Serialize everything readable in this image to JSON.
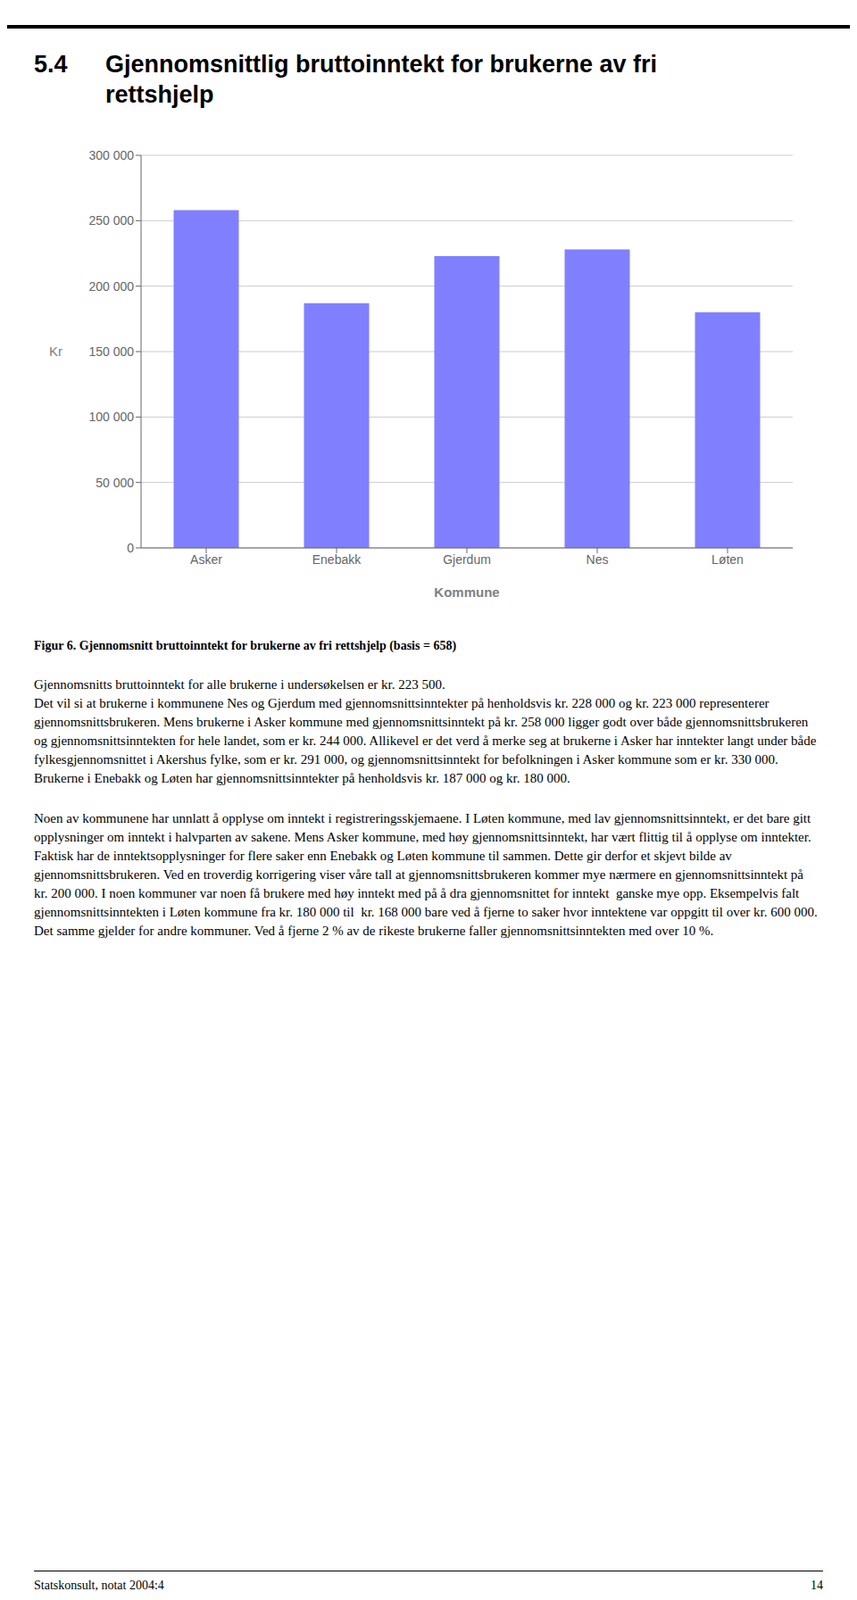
{
  "section_number": "5.4",
  "figcaption": "Figur 6. Gjennomsnitt bruttoinntekt for brukerne av fri rettshjelp (basis = 658)",
  "body_text": "Gjennomsnitts bruttoinntekt for alle brukerne i undersøkelsen er kr. 223 500.\nDet vil si at brukerne i kommunene Nes og Gjerdum med gjennomsnittsinntekter på henholdsvis kr. 228 000 og kr. 223 000 representerer gjennomsnittsbrukeren. Mens brukerne i Asker kommune med gjennomsnittsinntekt på kr. 258 000 ligger godt over både gjennomsnittsbrukeren og gjennomsnittsinntekten for hele landet, som er kr. 244 000. Allikevel er det verd å merke seg at brukerne i Asker har inntekter langt under både fylkesgjennomsnittet i Akershus fylke, som er kr. 291 000, og gjennomsnittsinntekt for befolkningen i Asker kommune som er kr. 330 000. Brukerne i Enebakk og Løten har gjennomsnittsinntekter på henholdsvis kr. 187 000 og kr. 180 000.",
  "body_text2": "Noen av kommunene har unnlatt å opplyse om inntekt i registreringsskjemaene. I Løten kommune, med lav gjennomsnittsinntekt, er det bare gitt opplysninger om inntekt i halvparten av sakene. Mens Asker kommune, med høy gjennomsnittsinntekt, har vært flittig til å opplyse om inntekter. Faktisk har de inntektsopplysninger for flere saker enn Enebakk og Løten kommune til sammen. Dette gir derfor et skjevt bilde av gjennomsnittsbrukeren. Ved en troverdig korrigering viser våre tall at gjennomsnittsbrukeren kommer mye nærmere en gjennomsnittsinntekt på  kr. 200 000. I noen kommuner var noen få brukere med høy inntekt med på å dra gjennomsnittet for inntekt  ganske mye opp. Eksempelvis falt gjennomsnittsinntekten i Løten kommune fra kr. 180 000 til  kr. 168 000 bare ved å fjerne to saker hvor inntektene var oppgitt til over kr. 600 000. Det samme gjelder for andre kommuner. Ved å fjerne 2 % av de rikeste brukerne faller gjennomsnittsinntekten med over 10 %.",
  "footer_left": "Statskonsult, notat 2004:4",
  "footer_right": "14",
  "chart_data": {
    "type": "bar",
    "title": "Gjennomsnittlig bruttoinntekt for brukerne av fri\nrettshjelp",
    "categories": [
      "Asker",
      "Enebakk",
      "Gjerdum",
      "Nes",
      "Løten"
    ],
    "values": [
      258000,
      187000,
      223000,
      228000,
      180000
    ],
    "color": "#8080ff",
    "xlabel": "Kommune",
    "ylabel": "Kr",
    "ylim": [
      0,
      300000
    ],
    "yticks": [
      0,
      {
        "value": 50000,
        "label": "50 000"
      },
      {
        "value": 100000,
        "label": "100 000"
      },
      {
        "value": 150000,
        "label": "150 000"
      },
      {
        "value": 200000,
        "label": "200 000"
      },
      {
        "value": 250000,
        "label": "250 000"
      },
      {
        "value": 300000,
        "label": "300 000"
      }
    ],
    "grid": true
  }
}
